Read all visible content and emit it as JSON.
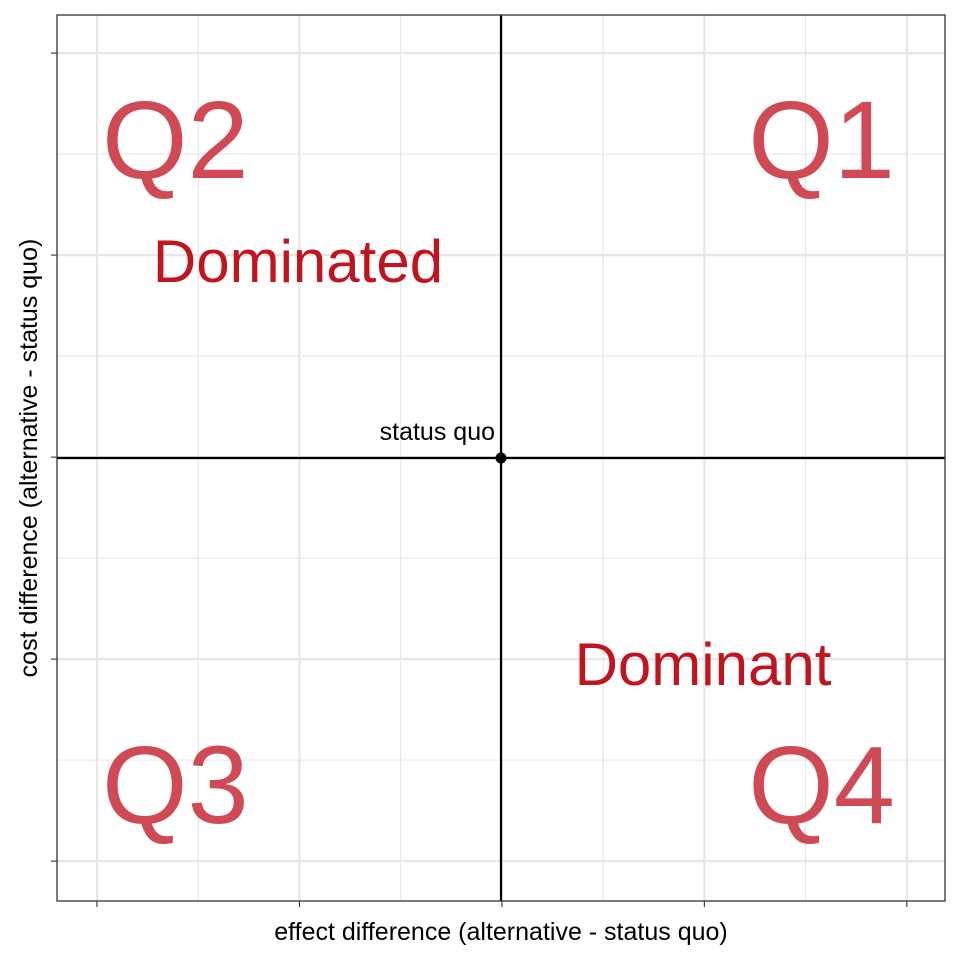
{
  "chart_data": {
    "type": "scatter",
    "title": "",
    "xlabel": "effect difference (alternative - status quo)",
    "ylabel": "cost difference (alternative - status quo)",
    "xlim": [
      -1,
      1
    ],
    "ylim": [
      -1,
      1
    ],
    "grid": true,
    "tick_labels": false,
    "points": [
      {
        "label": "status quo",
        "x": 0,
        "y": 0
      }
    ],
    "quadrant_labels": [
      {
        "text": "Q1",
        "quadrant": "top-right"
      },
      {
        "text": "Q2",
        "quadrant": "top-left"
      },
      {
        "text": "Q3",
        "quadrant": "bottom-left"
      },
      {
        "text": "Q4",
        "quadrant": "bottom-right"
      }
    ],
    "annotations": [
      {
        "text": "Dominated",
        "quadrant": "top-left"
      },
      {
        "text": "Dominant",
        "quadrant": "bottom-right"
      }
    ],
    "colors": {
      "quadrant_label": "#d04a55",
      "annotation": "#c0141f",
      "axis": "#000000",
      "grid": "#e6e6e6",
      "panel_border": "#333333"
    }
  }
}
